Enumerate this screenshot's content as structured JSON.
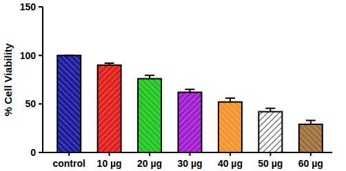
{
  "chart_data": {
    "type": "bar",
    "y_label": "% Cell Viability",
    "categories": [
      "control",
      "10 µg",
      "20 µg",
      "30 µg",
      "40 µg",
      "50 µg",
      "60 µg"
    ],
    "values": [
      100,
      90,
      76,
      62,
      52,
      42,
      29
    ],
    "errors": [
      0,
      2,
      3.5,
      3,
      4,
      3.5,
      4
    ],
    "colors": [
      "#1c1c9c",
      "#e0201c",
      "#22c422",
      "#a01ed0",
      "#f5932e",
      "#ffffff",
      "#a0703a"
    ],
    "ylim": [
      0,
      150
    ],
    "yticks": [
      0,
      50,
      100,
      150
    ],
    "grid": false
  }
}
